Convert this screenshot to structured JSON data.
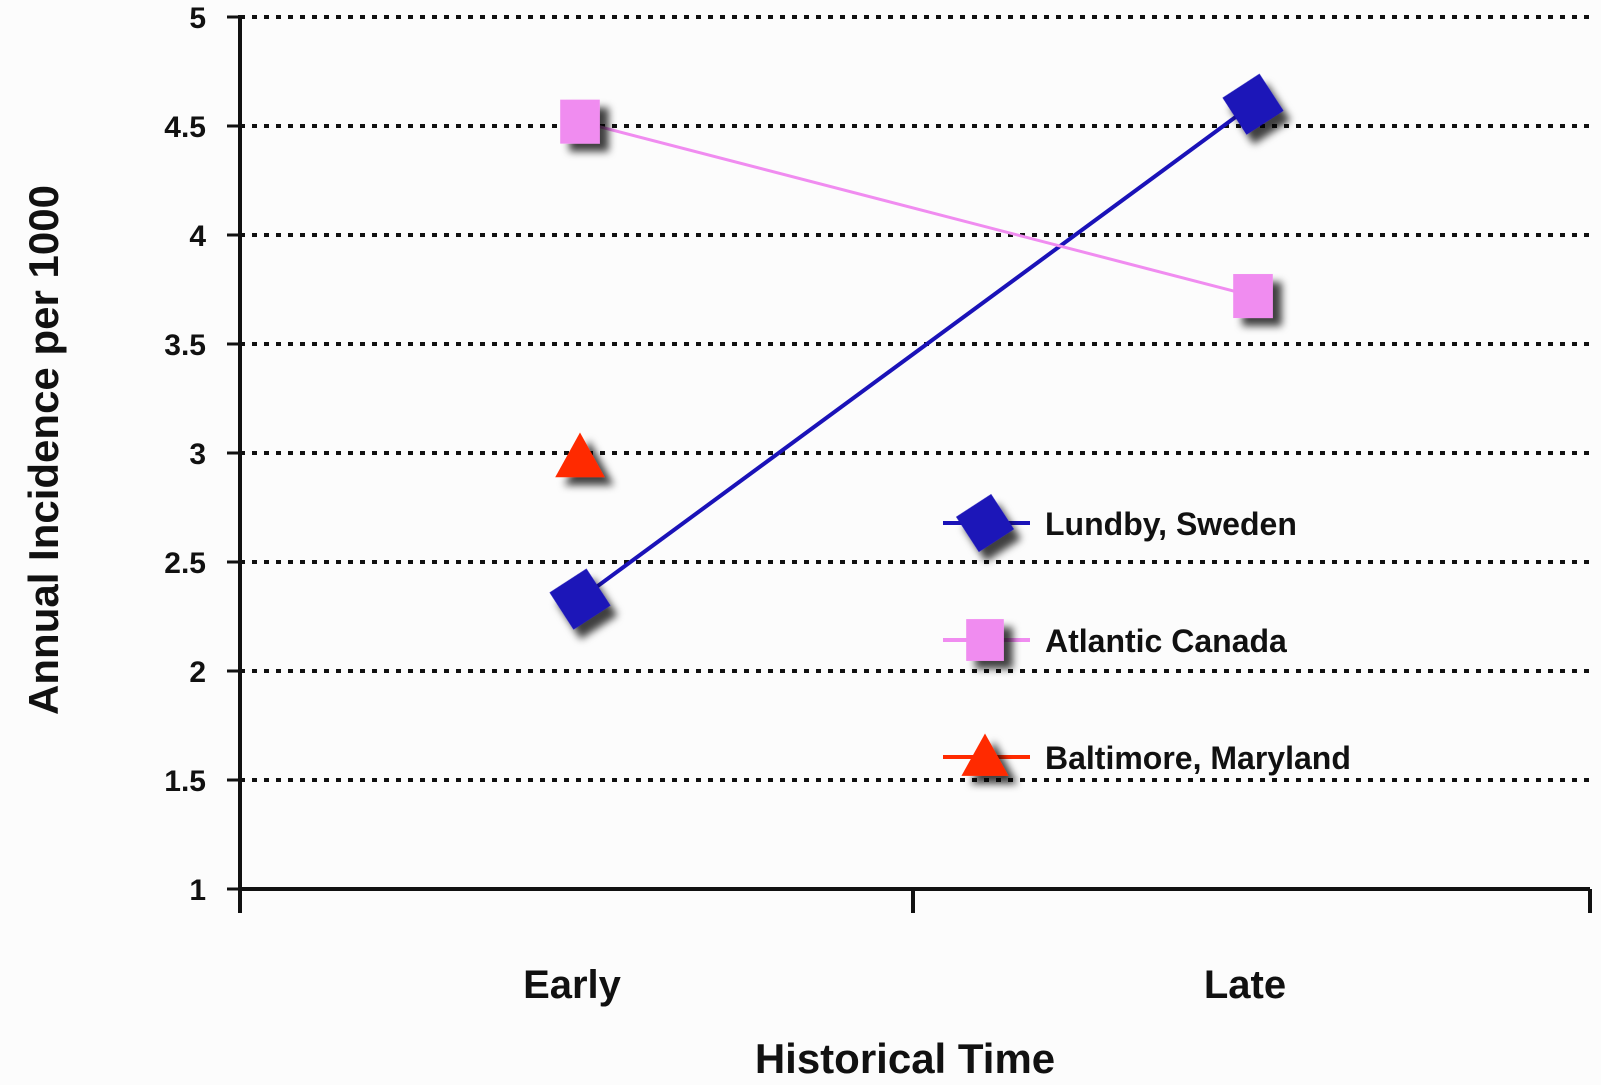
{
  "chart_data": {
    "type": "line",
    "title": "",
    "xlabel": "Historical Time",
    "ylabel": "Annual Incidence per 1000",
    "categories": [
      "Early",
      "Late"
    ],
    "ylim": [
      1,
      5
    ],
    "yticks": [
      "1",
      "1.5",
      "2",
      "2.5",
      "3",
      "3.5",
      "4",
      "4.5",
      "5"
    ],
    "grid": "horizontal dotted",
    "legend_position": "center-right",
    "series": [
      {
        "name": "Lundby, Sweden",
        "color": "#1a12b8",
        "marker": "diamond",
        "values": [
          2.33,
          4.6
        ]
      },
      {
        "name": "Atlantic Canada",
        "color": "#f08cf0",
        "marker": "square",
        "values": [
          4.52,
          3.72
        ]
      },
      {
        "name": "Baltimore, Maryland",
        "color": "#ff2a00",
        "marker": "triangle",
        "values": [
          2.98,
          null
        ]
      }
    ]
  }
}
